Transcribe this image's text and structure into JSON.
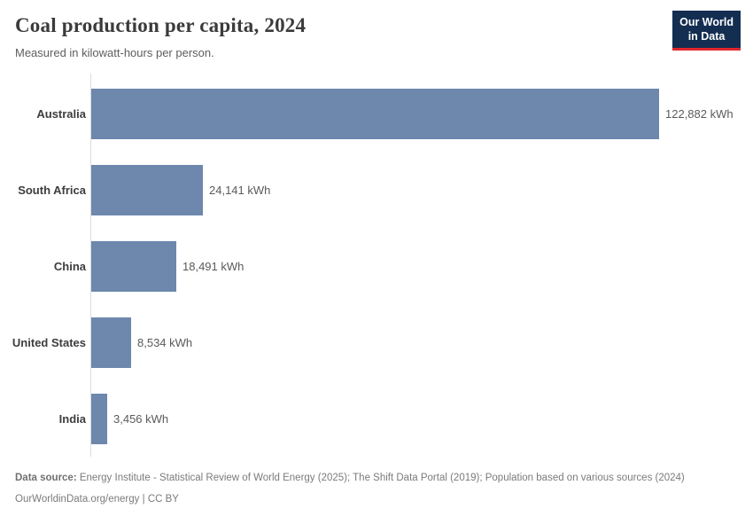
{
  "header": {
    "title": "Coal production per capita, 2024",
    "subtitle": "Measured in kilowatt-hours per person."
  },
  "logo": {
    "line1": "Our World",
    "line2": "in Data",
    "background_color": "#142e52",
    "accent_color": "#e0262d"
  },
  "chart_data": {
    "type": "bar",
    "orientation": "horizontal",
    "title": "Coal production per capita, 2024",
    "subtitle": "Measured in kilowatt-hours per person.",
    "categories": [
      "Australia",
      "South Africa",
      "China",
      "United States",
      "India"
    ],
    "values": [
      122882,
      24141,
      18491,
      8534,
      3456
    ],
    "value_labels": [
      "122,882 kWh",
      "24,141 kWh",
      "18,491 kWh",
      "8,534 kWh",
      "3,456 kWh"
    ],
    "unit": "kWh",
    "xlim": [
      0,
      122882
    ],
    "grid": false,
    "legend": false,
    "bar_color": "#6d87ad"
  },
  "footer": {
    "source_label": "Data source:",
    "source_text": " Energy Institute - Statistical Review of World Energy (2025); The Shift Data Portal (2019); Population based on various sources (2024)",
    "license_link": "OurWorldinData.org/energy",
    "license_separator": " | ",
    "license_text": "CC BY"
  }
}
